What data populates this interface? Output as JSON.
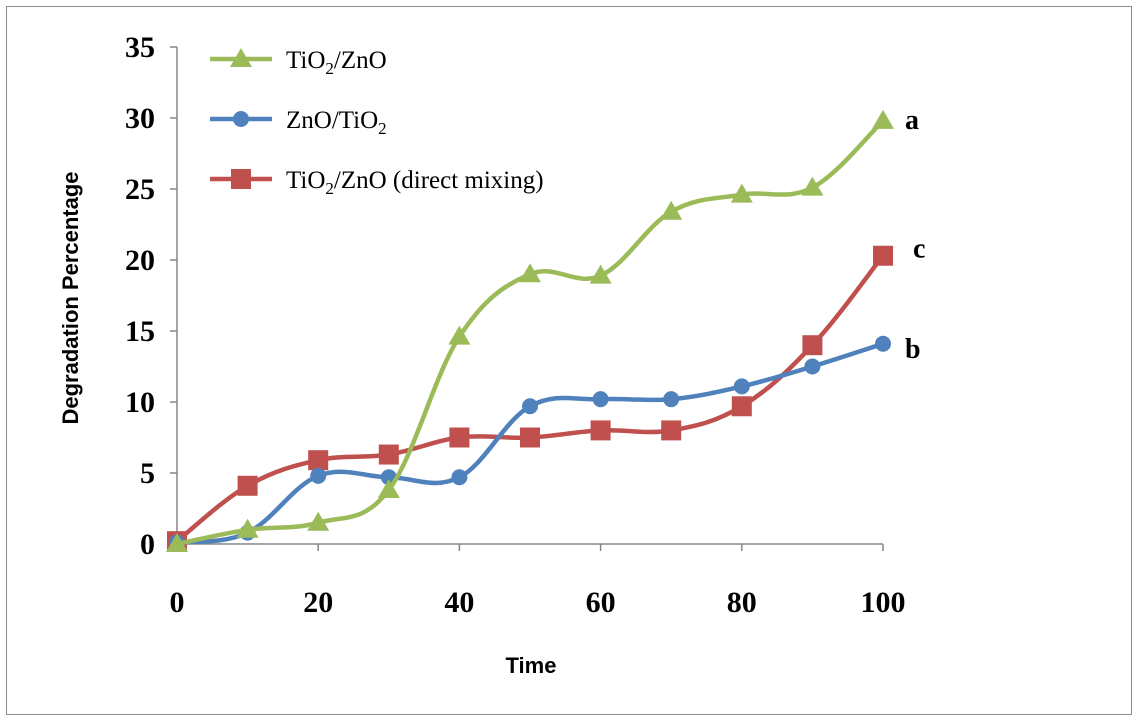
{
  "chart_data": {
    "type": "line",
    "title": "",
    "xlabel": "Time",
    "ylabel": "Degradation Percentage",
    "xlim": [
      0,
      100
    ],
    "ylim": [
      0,
      35
    ],
    "x_ticks": [
      0,
      20,
      40,
      60,
      80,
      100
    ],
    "y_ticks": [
      0,
      5,
      10,
      15,
      20,
      25,
      30,
      35
    ],
    "x": [
      0,
      10,
      20,
      30,
      40,
      50,
      60,
      70,
      80,
      90,
      100
    ],
    "grid": false,
    "legend_position": "top-left",
    "series": [
      {
        "name_parts": [
          "TiO",
          "2",
          "/ZnO",
          ""
        ],
        "end_label": "a",
        "color": "#9bbb59",
        "marker": "triangle",
        "values": [
          0,
          1.0,
          1.5,
          3.8,
          14.6,
          19.0,
          18.9,
          23.4,
          24.6,
          25.1,
          29.8
        ]
      },
      {
        "name_parts": [
          "ZnO/TiO",
          "2",
          "",
          ""
        ],
        "end_label": "b",
        "color": "#4f81bd",
        "marker": "circle",
        "values": [
          0.1,
          0.8,
          4.8,
          4.7,
          4.7,
          9.7,
          10.2,
          10.2,
          11.1,
          12.5,
          14.1
        ]
      },
      {
        "name_parts": [
          "TiO",
          "2",
          "/ZnO (direct mixing)",
          ""
        ],
        "end_label": "c",
        "color": "#c0504d",
        "marker": "square",
        "values": [
          0.2,
          4.1,
          5.9,
          6.3,
          7.5,
          7.5,
          8.0,
          8.0,
          9.7,
          14.0,
          20.3
        ]
      }
    ]
  }
}
